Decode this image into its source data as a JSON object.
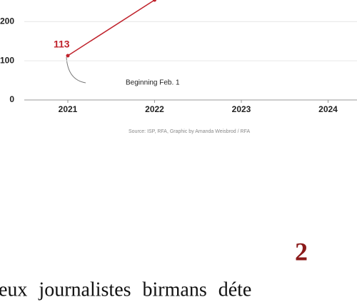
{
  "chart_data": {
    "type": "line",
    "categories": [
      "2021",
      "2022",
      "2023",
      "2024"
    ],
    "values": [
      113,
      255,
      null,
      null
    ],
    "color": "#c0232c",
    "ylim": [
      0,
      255
    ],
    "yticks": [
      0,
      100,
      200
    ],
    "grid": true,
    "annotation": "Beginning Feb. 1",
    "source": "Source: ISP, RFA, Graphic by Amanda Weisbrod / RFA"
  },
  "document": {
    "section_number": "2",
    "text": "eux journalistes birmans déte"
  }
}
